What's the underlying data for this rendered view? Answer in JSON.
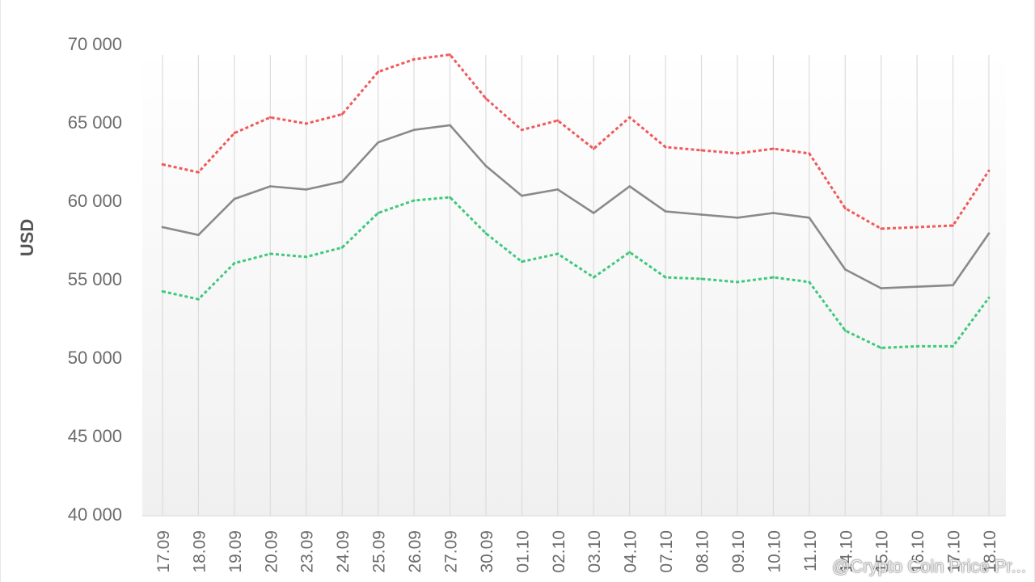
{
  "watermark": "@Crypto Coin Price Pr...",
  "chart_data": {
    "type": "line",
    "ylabel": "USD",
    "xlabel": "",
    "ylim": [
      40000,
      70000
    ],
    "yticks": [
      "40 000",
      "45 000",
      "50 000",
      "55 000",
      "60 000",
      "65 000",
      "70 000"
    ],
    "ytick_values": [
      40000,
      45000,
      50000,
      55000,
      60000,
      65000,
      70000
    ],
    "grid": "vertical",
    "categories": [
      "17.09",
      "18.09",
      "19.09",
      "20.09",
      "23.09",
      "24.09",
      "25.09",
      "26.09",
      "27.09",
      "30.09",
      "01.10",
      "02.10",
      "03.10",
      "04.10",
      "07.10",
      "08.10",
      "09.10",
      "10.10",
      "11.10",
      "14.10",
      "15.10",
      "16.10",
      "17.10",
      "18.10"
    ],
    "series": [
      {
        "color": "#f05a5a",
        "style": "dotted",
        "values": [
          62300,
          61800,
          64300,
          65300,
          64900,
          65500,
          68200,
          69000,
          69300,
          66500,
          64500,
          65100,
          63300,
          65300,
          63400,
          63200,
          63000,
          63300,
          63000,
          59500,
          58200,
          58300,
          58400,
          61900
        ]
      },
      {
        "color": "#8a8a8a",
        "style": "solid",
        "values": [
          58300,
          57800,
          60100,
          60900,
          60700,
          61200,
          63700,
          64500,
          64800,
          62200,
          60300,
          60700,
          59200,
          60900,
          59300,
          59100,
          58900,
          59200,
          58900,
          55600,
          54400,
          54500,
          54600,
          57900
        ]
      },
      {
        "color": "#3ec97c",
        "style": "dotted",
        "values": [
          54200,
          53700,
          56000,
          56600,
          56400,
          57000,
          59200,
          60000,
          60200,
          57900,
          56100,
          56600,
          55100,
          56700,
          55100,
          55000,
          54800,
          55100,
          54800,
          51700,
          50600,
          50700,
          50700,
          53800
        ]
      }
    ]
  }
}
